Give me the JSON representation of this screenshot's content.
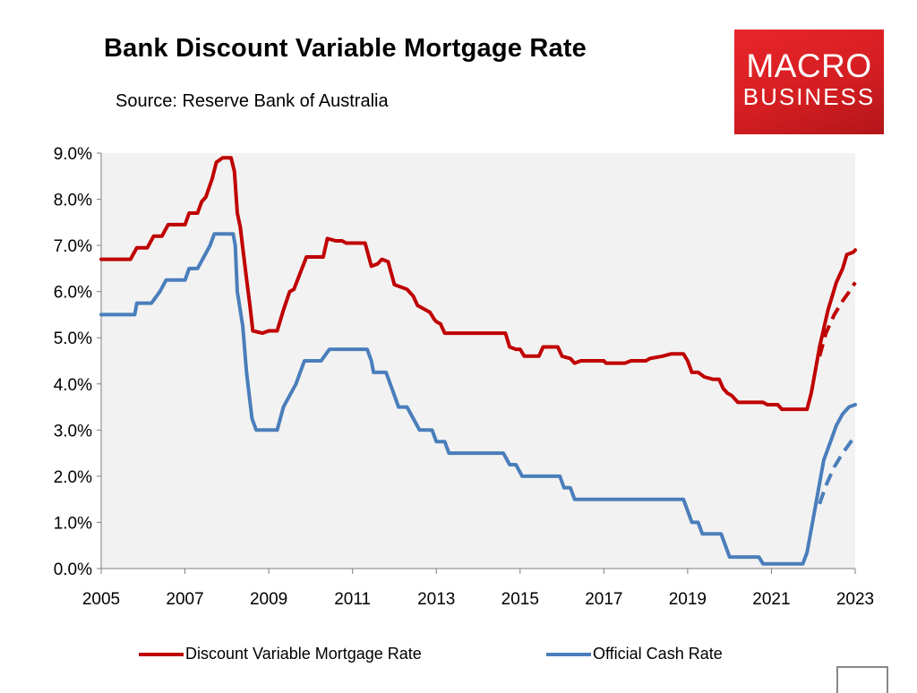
{
  "header": {
    "title": "Bank Discount Variable Mortgage Rate",
    "source": "Source: Reserve Bank of Australia"
  },
  "logo": {
    "line1": "MACRO",
    "line2": "BUSINESS"
  },
  "colors": {
    "mortgage": "#c00000",
    "cash": "#4a7ebb",
    "plot_bg": "#f2f2f2"
  },
  "chart_data": {
    "type": "line",
    "title": "Bank Discount Variable Mortgage Rate",
    "subtitle": "Source: Reserve Bank of Australia",
    "xlabel": "",
    "ylabel": "",
    "xlim": [
      2005,
      2023
    ],
    "ylim": [
      0,
      9
    ],
    "x_ticks": [
      2005,
      2007,
      2009,
      2011,
      2013,
      2015,
      2017,
      2019,
      2021,
      2023
    ],
    "y_ticks": [
      "0.0%",
      "1.0%",
      "2.0%",
      "3.0%",
      "4.0%",
      "5.0%",
      "6.0%",
      "7.0%",
      "8.0%",
      "9.0%"
    ],
    "grid": false,
    "legend_position": "bottom",
    "series": [
      {
        "name": "Discount Variable Mortgage Rate",
        "color": "#c00000",
        "points": [
          [
            2005.0,
            6.7
          ],
          [
            2005.7,
            6.7
          ],
          [
            2005.85,
            6.95
          ],
          [
            2006.1,
            6.95
          ],
          [
            2006.25,
            7.2
          ],
          [
            2006.45,
            7.2
          ],
          [
            2006.6,
            7.45
          ],
          [
            2007.0,
            7.45
          ],
          [
            2007.1,
            7.7
          ],
          [
            2007.3,
            7.7
          ],
          [
            2007.4,
            7.95
          ],
          [
            2007.5,
            8.05
          ],
          [
            2007.65,
            8.45
          ],
          [
            2007.75,
            8.8
          ],
          [
            2007.9,
            8.9
          ],
          [
            2008.0,
            8.9
          ],
          [
            2008.1,
            8.9
          ],
          [
            2008.18,
            8.6
          ],
          [
            2008.25,
            7.7
          ],
          [
            2008.32,
            7.4
          ],
          [
            2008.4,
            6.8
          ],
          [
            2008.48,
            6.2
          ],
          [
            2008.55,
            5.7
          ],
          [
            2008.62,
            5.15
          ],
          [
            2008.85,
            5.1
          ],
          [
            2009.0,
            5.15
          ],
          [
            2009.2,
            5.15
          ],
          [
            2009.35,
            5.6
          ],
          [
            2009.5,
            6.0
          ],
          [
            2009.6,
            6.05
          ],
          [
            2009.75,
            6.4
          ],
          [
            2009.9,
            6.75
          ],
          [
            2010.3,
            6.75
          ],
          [
            2010.4,
            7.15
          ],
          [
            2010.6,
            7.1
          ],
          [
            2010.75,
            7.1
          ],
          [
            2010.85,
            7.05
          ],
          [
            2011.3,
            7.05
          ],
          [
            2011.45,
            6.55
          ],
          [
            2011.6,
            6.6
          ],
          [
            2011.7,
            6.7
          ],
          [
            2011.85,
            6.65
          ],
          [
            2012.0,
            6.15
          ],
          [
            2012.3,
            6.05
          ],
          [
            2012.45,
            5.9
          ],
          [
            2012.55,
            5.7
          ],
          [
            2012.75,
            5.6
          ],
          [
            2012.85,
            5.55
          ],
          [
            2012.95,
            5.4
          ],
          [
            2013.0,
            5.35
          ],
          [
            2013.1,
            5.3
          ],
          [
            2013.2,
            5.1
          ],
          [
            2014.5,
            5.1
          ],
          [
            2014.65,
            5.1
          ],
          [
            2014.75,
            4.8
          ],
          [
            2014.9,
            4.75
          ],
          [
            2015.0,
            4.75
          ],
          [
            2015.1,
            4.6
          ],
          [
            2015.3,
            4.6
          ],
          [
            2015.45,
            4.6
          ],
          [
            2015.55,
            4.8
          ],
          [
            2015.9,
            4.8
          ],
          [
            2016.0,
            4.6
          ],
          [
            2016.2,
            4.55
          ],
          [
            2016.3,
            4.45
          ],
          [
            2016.45,
            4.5
          ],
          [
            2017.0,
            4.5
          ],
          [
            2017.05,
            4.45
          ],
          [
            2017.5,
            4.45
          ],
          [
            2017.65,
            4.5
          ],
          [
            2018.0,
            4.5
          ],
          [
            2018.1,
            4.55
          ],
          [
            2018.4,
            4.6
          ],
          [
            2018.6,
            4.65
          ],
          [
            2018.9,
            4.65
          ],
          [
            2019.0,
            4.5
          ],
          [
            2019.1,
            4.25
          ],
          [
            2019.25,
            4.25
          ],
          [
            2019.4,
            4.15
          ],
          [
            2019.6,
            4.1
          ],
          [
            2019.75,
            4.1
          ],
          [
            2019.85,
            3.9
          ],
          [
            2019.95,
            3.8
          ],
          [
            2020.05,
            3.75
          ],
          [
            2020.2,
            3.6
          ],
          [
            2020.8,
            3.6
          ],
          [
            2020.9,
            3.55
          ],
          [
            2021.15,
            3.55
          ],
          [
            2021.25,
            3.45
          ],
          [
            2021.85,
            3.45
          ],
          [
            2021.95,
            3.8
          ],
          [
            2022.05,
            4.3
          ],
          [
            2022.15,
            4.8
          ],
          [
            2022.25,
            5.2
          ],
          [
            2022.35,
            5.6
          ],
          [
            2022.45,
            5.9
          ],
          [
            2022.55,
            6.2
          ],
          [
            2022.7,
            6.5
          ],
          [
            2022.8,
            6.8
          ],
          [
            2022.95,
            6.85
          ],
          [
            2023.0,
            6.9
          ]
        ]
      },
      {
        "name": "Official Cash Rate",
        "color": "#4a7ebb",
        "points": [
          [
            2005.0,
            5.5
          ],
          [
            2005.8,
            5.5
          ],
          [
            2005.85,
            5.75
          ],
          [
            2006.2,
            5.75
          ],
          [
            2006.4,
            6.0
          ],
          [
            2006.55,
            6.25
          ],
          [
            2007.0,
            6.25
          ],
          [
            2007.1,
            6.5
          ],
          [
            2007.3,
            6.5
          ],
          [
            2007.45,
            6.75
          ],
          [
            2007.6,
            7.0
          ],
          [
            2007.7,
            7.25
          ],
          [
            2008.15,
            7.25
          ],
          [
            2008.2,
            7.0
          ],
          [
            2008.25,
            6.0
          ],
          [
            2008.38,
            5.25
          ],
          [
            2008.47,
            4.25
          ],
          [
            2008.6,
            3.25
          ],
          [
            2008.7,
            3.0
          ],
          [
            2009.2,
            3.0
          ],
          [
            2009.35,
            3.5
          ],
          [
            2009.5,
            3.75
          ],
          [
            2009.65,
            4.0
          ],
          [
            2009.85,
            4.5
          ],
          [
            2010.25,
            4.5
          ],
          [
            2010.45,
            4.75
          ],
          [
            2011.35,
            4.75
          ],
          [
            2011.45,
            4.5
          ],
          [
            2011.5,
            4.25
          ],
          [
            2011.8,
            4.25
          ],
          [
            2011.9,
            4.0
          ],
          [
            2012.1,
            3.5
          ],
          [
            2012.3,
            3.5
          ],
          [
            2012.45,
            3.25
          ],
          [
            2012.6,
            3.0
          ],
          [
            2012.9,
            3.0
          ],
          [
            2013.0,
            2.75
          ],
          [
            2013.2,
            2.75
          ],
          [
            2013.3,
            2.5
          ],
          [
            2014.6,
            2.5
          ],
          [
            2014.75,
            2.25
          ],
          [
            2014.9,
            2.25
          ],
          [
            2015.05,
            2.0
          ],
          [
            2015.95,
            2.0
          ],
          [
            2016.05,
            1.75
          ],
          [
            2016.2,
            1.75
          ],
          [
            2016.3,
            1.5
          ],
          [
            2018.9,
            1.5
          ],
          [
            2019.0,
            1.25
          ],
          [
            2019.1,
            1.0
          ],
          [
            2019.25,
            1.0
          ],
          [
            2019.35,
            0.75
          ],
          [
            2019.8,
            0.75
          ],
          [
            2019.9,
            0.5
          ],
          [
            2020.0,
            0.25
          ],
          [
            2020.7,
            0.25
          ],
          [
            2020.8,
            0.1
          ],
          [
            2021.75,
            0.1
          ],
          [
            2021.85,
            0.35
          ],
          [
            2021.95,
            0.85
          ],
          [
            2022.05,
            1.35
          ],
          [
            2022.15,
            1.85
          ],
          [
            2022.25,
            2.35
          ],
          [
            2022.35,
            2.6
          ],
          [
            2022.45,
            2.85
          ],
          [
            2022.55,
            3.1
          ],
          [
            2022.7,
            3.35
          ],
          [
            2022.85,
            3.5
          ],
          [
            2023.0,
            3.55
          ]
        ]
      },
      {
        "name": "",
        "color": "#c00000",
        "dashed": true,
        "points": [
          [
            2022.15,
            4.6
          ],
          [
            2022.3,
            5.1
          ],
          [
            2022.5,
            5.5
          ],
          [
            2022.7,
            5.8
          ],
          [
            2022.9,
            6.05
          ],
          [
            2023.0,
            6.2
          ]
        ]
      },
      {
        "name": "",
        "color": "#4a7ebb",
        "dashed": true,
        "points": [
          [
            2022.15,
            1.4
          ],
          [
            2022.3,
            1.8
          ],
          [
            2022.5,
            2.2
          ],
          [
            2022.7,
            2.5
          ],
          [
            2022.9,
            2.75
          ],
          [
            2023.0,
            2.85
          ]
        ]
      }
    ]
  }
}
